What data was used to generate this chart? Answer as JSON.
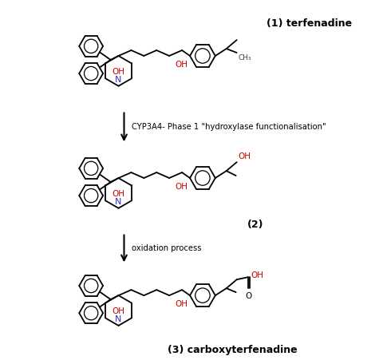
{
  "bg_color": "#ffffff",
  "black": "#000000",
  "blue": "#3030cc",
  "red": "#cc0000",
  "gray": "#444444",
  "label1": "(1) terfenadine",
  "label2": "(2)",
  "label3": "(3) carboxyterfenadine",
  "arrow1_label": "CYP3A4- Phase 1 \"hydroxylase functionalisation\"",
  "arrow2_label": "oxidation process",
  "CH3_label": "CH₃",
  "OH_label": "OH",
  "N_label": "N",
  "O_label": "O"
}
